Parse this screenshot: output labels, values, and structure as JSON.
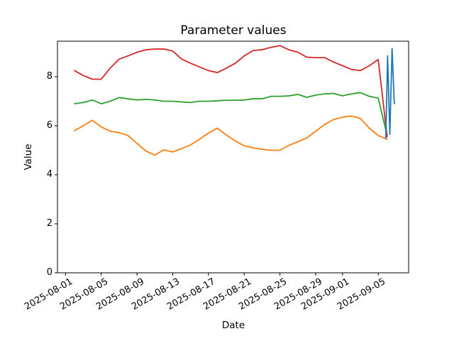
{
  "figure": {
    "background_color": "#ffffff",
    "axes_edge_color": "#000000"
  },
  "chart_data": {
    "type": "line",
    "title": "Parameter values",
    "xlabel": "Date",
    "ylabel": "Value",
    "x_unit": "days since 2025-08-01",
    "xlim": [
      -0.9,
      38.4
    ],
    "ylim": [
      0,
      9.45
    ],
    "grid": false,
    "legend": "none",
    "x_ticks": [
      {
        "offset": 0,
        "label": "2025-08-01"
      },
      {
        "offset": 4,
        "label": "2025-08-05"
      },
      {
        "offset": 8,
        "label": "2025-08-09"
      },
      {
        "offset": 12,
        "label": "2025-08-13"
      },
      {
        "offset": 16,
        "label": "2025-08-17"
      },
      {
        "offset": 20,
        "label": "2025-08-21"
      },
      {
        "offset": 24,
        "label": "2025-08-25"
      },
      {
        "offset": 28,
        "label": "2025-08-29"
      },
      {
        "offset": 31,
        "label": "2025-09-01"
      },
      {
        "offset": 35,
        "label": "2025-09-05"
      }
    ],
    "y_ticks": [
      0,
      2,
      4,
      6,
      8
    ],
    "series": [
      {
        "name": "orange-series",
        "color": "#ff7f0e",
        "x": [
          1,
          2,
          3,
          4,
          5,
          6,
          7,
          8,
          9,
          10,
          11,
          12,
          13,
          14,
          15,
          16,
          17,
          18,
          19,
          20,
          21,
          22,
          23,
          24,
          25,
          26,
          27,
          28,
          29,
          30,
          31,
          32,
          33,
          34,
          35,
          36
        ],
        "y": [
          5.8,
          6.0,
          6.22,
          5.95,
          5.78,
          5.72,
          5.6,
          5.28,
          4.97,
          4.8,
          5.02,
          4.93,
          5.07,
          5.22,
          5.45,
          5.7,
          5.9,
          5.62,
          5.38,
          5.18,
          5.1,
          5.04,
          5.0,
          5.0,
          5.2,
          5.35,
          5.5,
          5.78,
          6.05,
          6.25,
          6.35,
          6.4,
          6.3,
          5.9,
          5.6,
          5.45
        ]
      },
      {
        "name": "green-series",
        "color": "#2ca02c",
        "x": [
          1,
          2,
          3,
          4,
          5,
          6,
          7,
          8,
          9,
          10,
          11,
          12,
          13,
          14,
          15,
          16,
          17,
          18,
          19,
          20,
          21,
          22,
          23,
          24,
          25,
          26,
          27,
          28,
          29,
          30,
          31,
          32,
          33,
          34,
          35,
          36
        ],
        "y": [
          6.9,
          6.95,
          7.05,
          6.9,
          7.0,
          7.15,
          7.1,
          7.05,
          7.08,
          7.05,
          7.0,
          7.0,
          6.97,
          6.95,
          7.0,
          7.0,
          7.02,
          7.04,
          7.04,
          7.05,
          7.1,
          7.1,
          7.2,
          7.2,
          7.22,
          7.28,
          7.16,
          7.25,
          7.3,
          7.32,
          7.22,
          7.3,
          7.35,
          7.2,
          7.13,
          5.6
        ]
      },
      {
        "name": "red-series",
        "color": "#d62728",
        "x": [
          1,
          2,
          3,
          4,
          5,
          6,
          7,
          8,
          9,
          10,
          11,
          12,
          13,
          14,
          15,
          16,
          17,
          18,
          19,
          20,
          21,
          22,
          23,
          24,
          25,
          26,
          27,
          28,
          29,
          30,
          31,
          32,
          33,
          34,
          35,
          36
        ],
        "y": [
          8.25,
          8.05,
          7.9,
          7.9,
          8.35,
          8.72,
          8.85,
          9.0,
          9.1,
          9.13,
          9.13,
          9.05,
          8.72,
          8.55,
          8.4,
          8.25,
          8.17,
          8.35,
          8.55,
          8.85,
          9.07,
          9.1,
          9.2,
          9.27,
          9.1,
          9.0,
          8.8,
          8.78,
          8.78,
          8.6,
          8.45,
          8.3,
          8.25,
          8.45,
          8.7,
          5.55
        ]
      },
      {
        "name": "blue-series",
        "color": "#1f77b4",
        "x": [
          35.85,
          36.05,
          36.3,
          36.55,
          36.8
        ],
        "y": [
          5.5,
          8.85,
          5.65,
          9.15,
          6.9
        ]
      }
    ]
  }
}
